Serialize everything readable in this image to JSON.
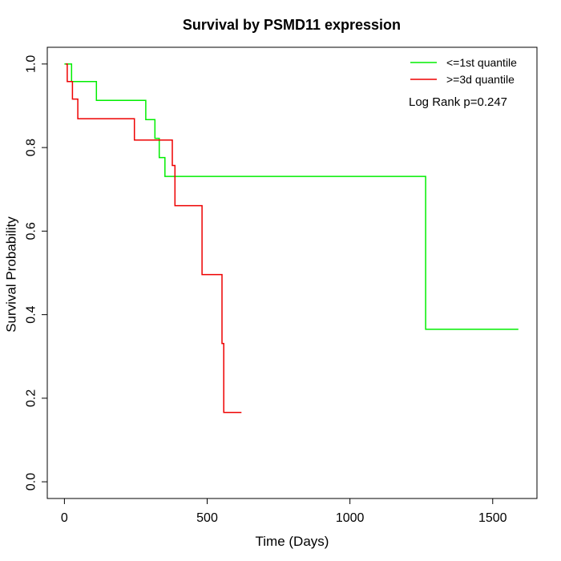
{
  "chart_data": {
    "type": "line",
    "title": "Survival by PSMD11 expression",
    "xlabel": "Time (Days)",
    "ylabel": "Survival Probability",
    "xlim": [
      -60,
      1655
    ],
    "ylim": [
      -0.04,
      1.04
    ],
    "x_ticks": [
      0,
      500,
      1000,
      1500
    ],
    "y_ticks": [
      0.0,
      0.2,
      0.4,
      0.6,
      0.8,
      1.0
    ],
    "x_tick_labels": [
      "0",
      "500",
      "1000",
      "1500"
    ],
    "y_tick_labels": [
      "0.0",
      "0.2",
      "0.4",
      "0.6",
      "0.8",
      "1.0"
    ],
    "grid": false,
    "legend_position": "top-right",
    "annotation": "Log Rank p=0.247",
    "series": [
      {
        "name": "<=1st quantile",
        "color": "#00ee00",
        "step_points": [
          [
            0,
            1.0
          ],
          [
            25,
            1.0
          ],
          [
            25,
            0.958
          ],
          [
            112,
            0.958
          ],
          [
            112,
            0.913
          ],
          [
            285,
            0.913
          ],
          [
            285,
            0.867
          ],
          [
            317,
            0.867
          ],
          [
            317,
            0.822
          ],
          [
            332,
            0.822
          ],
          [
            332,
            0.776
          ],
          [
            352,
            0.776
          ],
          [
            352,
            0.731
          ],
          [
            1265,
            0.731
          ],
          [
            1265,
            0.365
          ],
          [
            1590,
            0.365
          ]
        ]
      },
      {
        "name": ">=3d quantile",
        "color": "#ee0000",
        "step_points": [
          [
            5,
            1.0
          ],
          [
            10,
            1.0
          ],
          [
            10,
            0.958
          ],
          [
            28,
            0.958
          ],
          [
            28,
            0.916
          ],
          [
            47,
            0.916
          ],
          [
            47,
            0.869
          ],
          [
            245,
            0.869
          ],
          [
            245,
            0.818
          ],
          [
            378,
            0.818
          ],
          [
            378,
            0.757
          ],
          [
            387,
            0.757
          ],
          [
            387,
            0.661
          ],
          [
            482,
            0.661
          ],
          [
            482,
            0.496
          ],
          [
            552,
            0.496
          ],
          [
            552,
            0.331
          ],
          [
            558,
            0.331
          ],
          [
            558,
            0.166
          ],
          [
            620,
            0.166
          ]
        ]
      }
    ]
  }
}
